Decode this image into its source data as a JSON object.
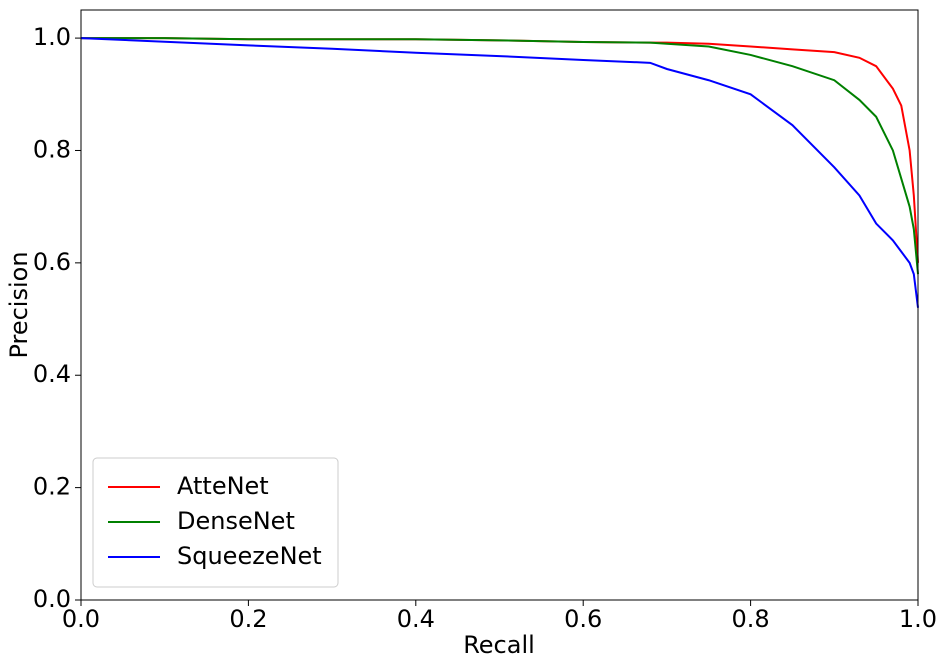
{
  "chart_data": {
    "type": "line",
    "x_label": "Recall",
    "y_label": "Precision",
    "x": [
      0,
      0.1,
      0.2,
      0.3,
      0.4,
      0.5,
      0.6,
      0.68,
      0.7,
      0.75,
      0.8,
      0.85,
      0.9,
      0.93,
      0.95,
      0.97,
      0.98,
      0.99,
      0.995,
      1.0
    ],
    "series": [
      {
        "name": "AtteNet",
        "color": "#ff0000",
        "values": [
          1.0,
          1.0,
          0.998,
          0.998,
          0.998,
          0.996,
          0.993,
          0.992,
          0.992,
          0.99,
          0.985,
          0.98,
          0.975,
          0.965,
          0.95,
          0.91,
          0.88,
          0.8,
          0.72,
          0.6
        ]
      },
      {
        "name": "DenseNet",
        "color": "#008000",
        "values": [
          1.0,
          1.0,
          0.998,
          0.998,
          0.998,
          0.996,
          0.993,
          0.992,
          0.99,
          0.985,
          0.97,
          0.95,
          0.925,
          0.89,
          0.86,
          0.8,
          0.75,
          0.7,
          0.66,
          0.58
        ]
      },
      {
        "name": "SqueezeNet",
        "color": "#0000ff",
        "values": [
          1.0,
          0.9935,
          0.987,
          0.981,
          0.974,
          0.968,
          0.961,
          0.956,
          0.945,
          0.925,
          0.9,
          0.845,
          0.77,
          0.72,
          0.67,
          0.64,
          0.62,
          0.6,
          0.58,
          0.52
        ]
      }
    ],
    "xlim": [
      0,
      1.0
    ],
    "ylim": [
      0,
      1.05
    ],
    "xticks": [
      {
        "value": 0,
        "label": "0.0"
      },
      0.2,
      0.4,
      0.6,
      0.8,
      {
        "value": 1,
        "label": "1.0"
      }
    ],
    "yticks": [
      {
        "value": 0,
        "label": "0.0"
      },
      0.2,
      0.4,
      0.6,
      0.8,
      {
        "value": 1,
        "label": "1.0"
      }
    ],
    "grid": false,
    "legend": "lower left"
  }
}
